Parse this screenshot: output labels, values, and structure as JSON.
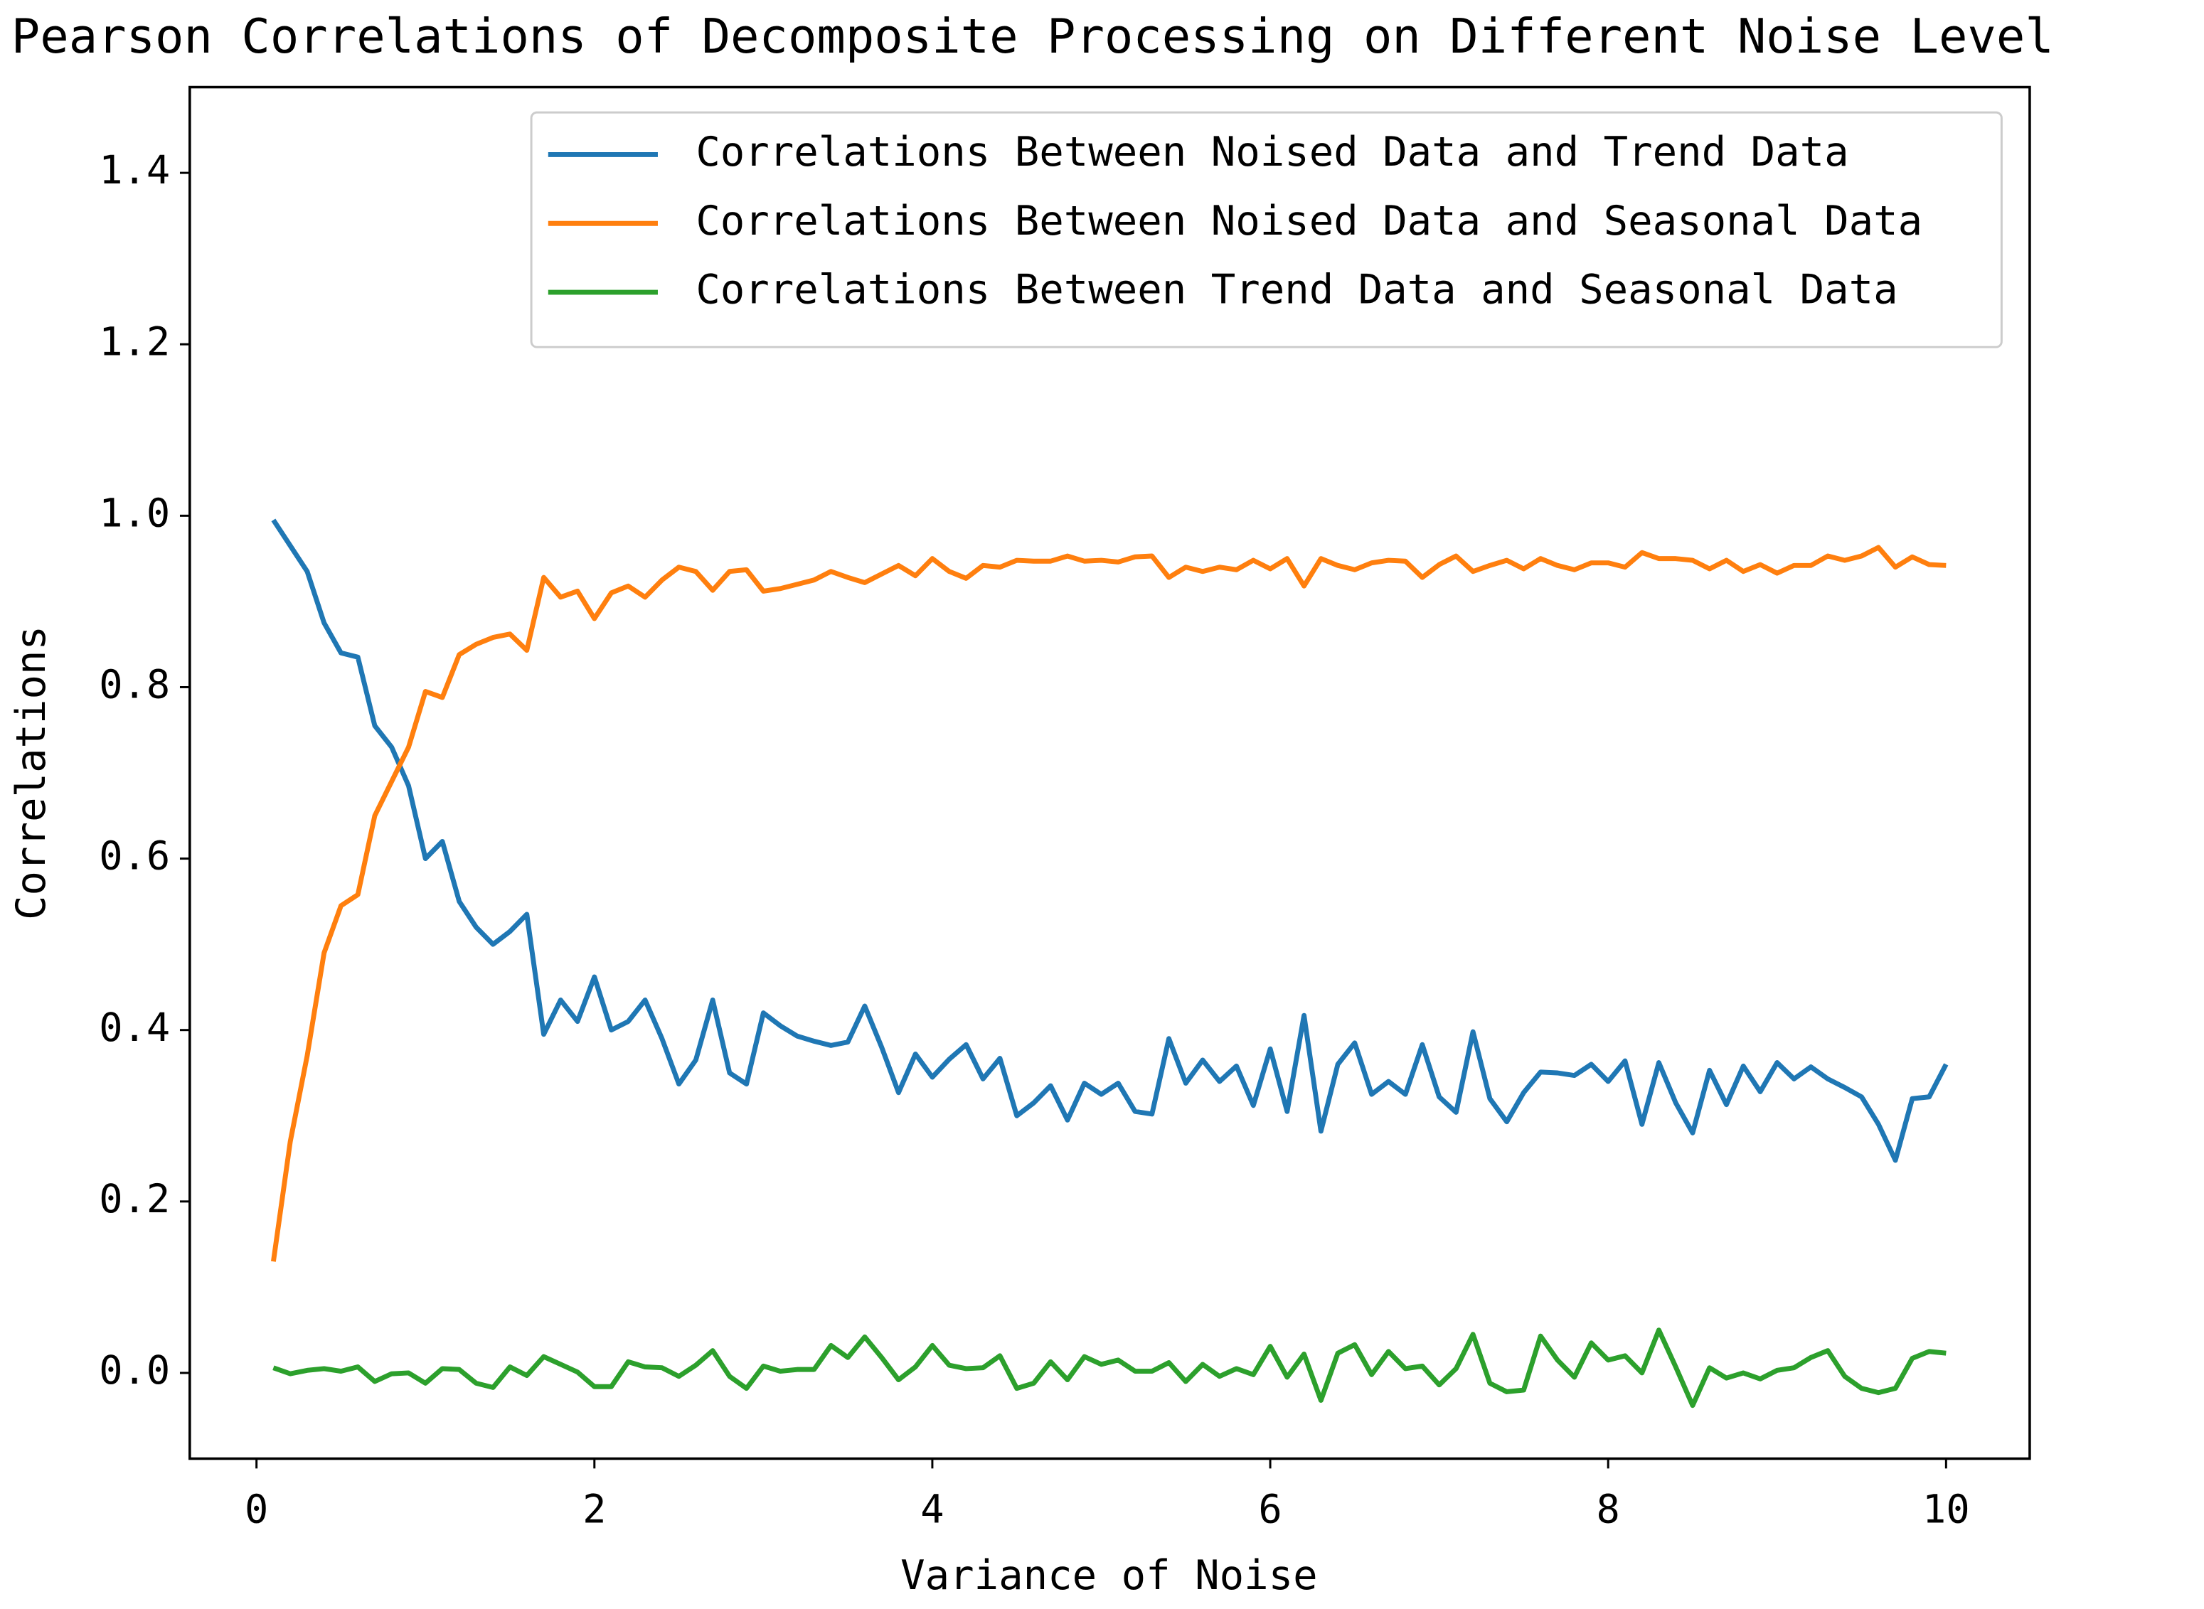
{
  "chart_data": {
    "type": "line",
    "title": "Pearson Correlations of Decomposite Processing on Different Noise Level",
    "xlabel": "Variance of Noise",
    "ylabel": "Correlations",
    "x": [
      0.1,
      0.2,
      0.3,
      0.4,
      0.5,
      0.6,
      0.7,
      0.8,
      0.9,
      1.0,
      1.1,
      1.2,
      1.3,
      1.4,
      1.5,
      1.6,
      1.7,
      1.8,
      1.9,
      2.0,
      2.1,
      2.2,
      2.3,
      2.4,
      2.5,
      2.6,
      2.7,
      2.8,
      2.9,
      3.0,
      3.1,
      3.2,
      3.3,
      3.4,
      3.5,
      3.6,
      3.7,
      3.8,
      3.9,
      4.0,
      4.1,
      4.2,
      4.3,
      4.4,
      4.5,
      4.6,
      4.7,
      4.8,
      4.9,
      5.0,
      5.1,
      5.2,
      5.3,
      5.4,
      5.5,
      5.6,
      5.7,
      5.8,
      5.9,
      6.0,
      6.1,
      6.2,
      6.3,
      6.4,
      6.5,
      6.6,
      6.7,
      6.8,
      6.9,
      7.0,
      7.1,
      7.2,
      7.3,
      7.4,
      7.5,
      7.6,
      7.7,
      7.8,
      7.9,
      8.0,
      8.1,
      8.2,
      8.3,
      8.4,
      8.5,
      8.6,
      8.7,
      8.8,
      8.9,
      9.0,
      9.1,
      9.2,
      9.3,
      9.4,
      9.5,
      9.6,
      9.7,
      9.8,
      9.9,
      10.0
    ],
    "series": [
      {
        "name": "Correlations Between Noised Data and Trend Data",
        "color": "#1f77b4",
        "values": [
          0.995,
          0.965,
          0.935,
          0.875,
          0.84,
          0.835,
          0.755,
          0.73,
          0.685,
          0.6,
          0.62,
          0.55,
          0.52,
          0.5,
          0.515,
          0.535,
          0.395,
          0.435,
          0.41,
          0.462,
          0.4,
          0.41,
          0.435,
          0.39,
          0.337,
          0.365,
          0.435,
          0.35,
          0.337,
          0.42,
          0.405,
          0.393,
          0.387,
          0.382,
          0.386,
          0.428,
          0.38,
          0.327,
          0.372,
          0.345,
          0.366,
          0.383,
          0.343,
          0.367,
          0.3,
          0.315,
          0.335,
          0.295,
          0.338,
          0.325,
          0.338,
          0.305,
          0.302,
          0.39,
          0.338,
          0.365,
          0.34,
          0.358,
          0.312,
          0.378,
          0.305,
          0.417,
          0.282,
          0.36,
          0.385,
          0.325,
          0.34,
          0.325,
          0.383,
          0.322,
          0.304,
          0.398,
          0.32,
          0.293,
          0.327,
          0.351,
          0.35,
          0.347,
          0.36,
          0.34,
          0.364,
          0.29,
          0.362,
          0.315,
          0.28,
          0.353,
          0.313,
          0.358,
          0.328,
          0.362,
          0.343,
          0.357,
          0.343,
          0.333,
          0.322,
          0.29,
          0.248,
          0.32,
          0.322,
          0.36
        ]
      },
      {
        "name": "Correlations Between Noised Data and Seasonal Data",
        "color": "#ff7f0e",
        "values": [
          0.13,
          0.27,
          0.37,
          0.49,
          0.545,
          0.558,
          0.65,
          0.69,
          0.73,
          0.795,
          0.788,
          0.838,
          0.85,
          0.858,
          0.862,
          0.843,
          0.928,
          0.905,
          0.912,
          0.88,
          0.91,
          0.918,
          0.905,
          0.925,
          0.94,
          0.935,
          0.913,
          0.935,
          0.937,
          0.912,
          0.915,
          0.92,
          0.925,
          0.935,
          0.928,
          0.922,
          0.932,
          0.942,
          0.93,
          0.95,
          0.935,
          0.927,
          0.942,
          0.94,
          0.948,
          0.947,
          0.947,
          0.953,
          0.947,
          0.948,
          0.946,
          0.952,
          0.953,
          0.928,
          0.94,
          0.935,
          0.94,
          0.937,
          0.948,
          0.938,
          0.95,
          0.918,
          0.95,
          0.942,
          0.937,
          0.945,
          0.948,
          0.947,
          0.928,
          0.943,
          0.953,
          0.935,
          0.942,
          0.948,
          0.938,
          0.95,
          0.942,
          0.937,
          0.945,
          0.945,
          0.94,
          0.957,
          0.95,
          0.95,
          0.948,
          0.938,
          0.948,
          0.935,
          0.943,
          0.933,
          0.942,
          0.942,
          0.953,
          0.948,
          0.953,
          0.963,
          0.94,
          0.952,
          0.943,
          0.942
        ]
      },
      {
        "name": "Correlations Between Trend Data and Seasonal Data",
        "color": "#2ca02c",
        "values": [
          0.006,
          -0.001,
          0.003,
          0.005,
          0.002,
          0.007,
          -0.01,
          -0.001,
          0,
          -0.012,
          0.005,
          0.004,
          -0.012,
          -0.017,
          0.007,
          -0.003,
          0.019,
          0.01,
          0.001,
          -0.016,
          -0.016,
          0.013,
          0.007,
          0.006,
          -0.004,
          0.009,
          0.026,
          -0.004,
          -0.018,
          0.008,
          0.002,
          0.004,
          0.004,
          0.032,
          0.018,
          0.042,
          0.018,
          -0.008,
          0.007,
          0.032,
          0.009,
          0.005,
          0.006,
          0.02,
          -0.018,
          -0.012,
          0.013,
          -0.008,
          0.019,
          0.01,
          0.015,
          0.002,
          0.002,
          0.012,
          -0.01,
          0.01,
          -0.004,
          0.005,
          -0.002,
          0.031,
          -0.005,
          0.022,
          -0.032,
          0.023,
          0.033,
          -0.002,
          0.025,
          0.005,
          0.008,
          -0.014,
          0.005,
          0.045,
          -0.012,
          -0.022,
          -0.02,
          0.043,
          0.015,
          -0.005,
          0.035,
          0.015,
          0.02,
          0,
          0.05,
          0.007,
          -0.038,
          0.006,
          -0.006,
          0,
          -0.007,
          0.003,
          0.006,
          0.018,
          0.026,
          -0.004,
          -0.018,
          -0.023,
          -0.018,
          0.017,
          0.025,
          0.023
        ]
      }
    ],
    "xlim": [
      -0.395,
      10.495
    ],
    "ylim": [
      -0.1,
      1.5
    ],
    "xticks": [
      0,
      2,
      4,
      6,
      8,
      10
    ],
    "yticks": [
      {
        "value": 0,
        "label": "0.0"
      },
      0.2,
      0.4,
      0.6,
      0.8,
      {
        "value": 1,
        "label": "1.0"
      },
      1.2,
      1.4
    ],
    "legend": "upper right",
    "grid": false
  }
}
